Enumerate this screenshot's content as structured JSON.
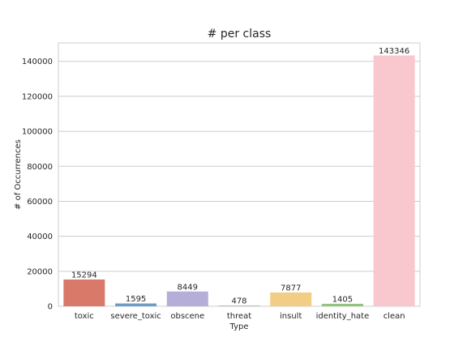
{
  "chart_data": {
    "type": "bar",
    "title": "# per class",
    "xlabel": "Type",
    "ylabel": "# of Occurrences",
    "categories": [
      "toxic",
      "severe_toxic",
      "obscene",
      "threat",
      "insult",
      "identity_hate",
      "clean"
    ],
    "values": [
      15294,
      1595,
      8449,
      478,
      7877,
      1405,
      143346
    ],
    "value_labels": [
      "15294",
      "1595",
      "8449",
      "478",
      "7877",
      "1405",
      "143346"
    ],
    "colors": [
      "#d9796a",
      "#6a9ec9",
      "#b4aed9",
      "#bfbfbf",
      "#f2cd85",
      "#93c47d",
      "#f9c8cf"
    ],
    "yticks": [
      0,
      20000,
      40000,
      60000,
      80000,
      100000,
      120000,
      140000
    ],
    "ytick_labels": [
      "0",
      "20000",
      "40000",
      "60000",
      "80000",
      "100000",
      "120000",
      "140000"
    ],
    "ylim": [
      0,
      150510
    ],
    "grid": true
  }
}
